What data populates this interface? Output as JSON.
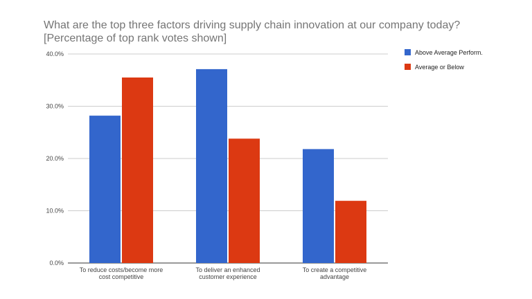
{
  "chart_data": {
    "type": "bar",
    "title": "What are the top three factors driving supply chain innovation at our company today?",
    "subtitle": "[Percentage of top rank votes shown]",
    "categories": [
      [
        "To reduce costs/become more",
        "cost competitive"
      ],
      [
        "To deliver an enhanced",
        "customer experience"
      ],
      [
        "To create a competitive",
        "advantage"
      ]
    ],
    "series": [
      {
        "name": "Above Average Perform.",
        "color": "#3366cc",
        "values": [
          28.2,
          37.1,
          21.8
        ]
      },
      {
        "name": "Average or Below",
        "color": "#dc3912",
        "values": [
          35.5,
          23.8,
          11.9
        ]
      }
    ],
    "yticks": [
      "0.0%",
      "10.0%",
      "20.0%",
      "30.0%",
      "40.0%"
    ],
    "ylim": [
      0,
      40
    ],
    "xlabel": "",
    "ylabel": "",
    "grid": true,
    "legend": "right"
  }
}
